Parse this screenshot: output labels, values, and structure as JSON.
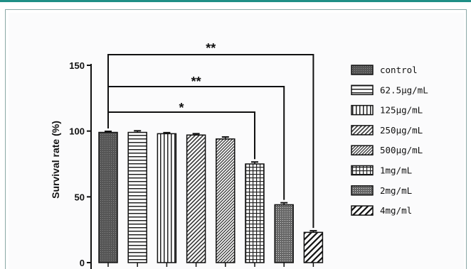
{
  "chart_data": {
    "type": "bar",
    "ylabel": "Survival rate (%)",
    "xlabel": "",
    "title": "",
    "ylim": [
      0,
      150
    ],
    "yticks": [
      0,
      50,
      100,
      150
    ],
    "grid": false,
    "legend_position": "right",
    "categories": [
      "control",
      "62.5μg/mL",
      "125μg/mL",
      "250μg/mL",
      "500μg/mL",
      "1mg/mL",
      "2mg/mL",
      "4mg/ml"
    ],
    "values": [
      99,
      99,
      98,
      97,
      94,
      75,
      44,
      23
    ],
    "errors": [
      0.8,
      1.2,
      0.8,
      1.0,
      1.5,
      1.5,
      1.5,
      1.2
    ],
    "patterns": [
      "dense-gray",
      "horizontal",
      "vertical",
      "diagonal-dense",
      "diagonal-fine",
      "grid",
      "dots",
      "diagonal-wide"
    ],
    "significance": [
      {
        "from": "control",
        "to": "1mg/mL",
        "label": "*"
      },
      {
        "from": "control",
        "to": "2mg/mL",
        "label": "**"
      },
      {
        "from": "control",
        "to": "4mg/ml",
        "label": "**"
      }
    ]
  },
  "colors": {
    "accent": "#1f8f86",
    "ink": "#111111"
  }
}
